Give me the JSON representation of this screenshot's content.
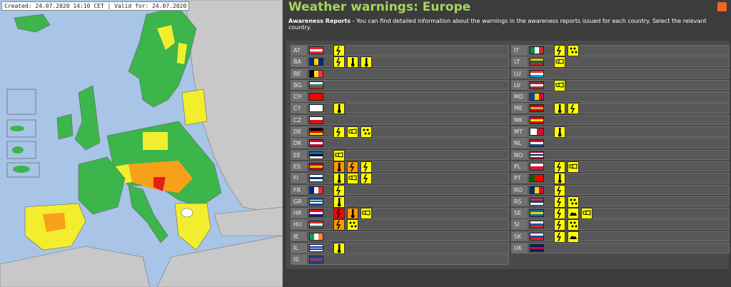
{
  "map": {
    "caption": "Created: 24.07.2020 14:10 CET | Valid for: 24.07.2020"
  },
  "header": {
    "title": "Weather warnings: Europe",
    "intro_bold": "Awareness Reports",
    "intro_text": " - You can find detailed information about the warnings in the awareness reports issued for each country. Select the relevant country."
  },
  "columns": [
    [
      {
        "code": "AT",
        "flag": {
          "dir": "h",
          "colors": [
            "#ed2939",
            "#ffffff",
            "#ed2939"
          ]
        },
        "warnings": [
          {
            "icon": "thunderstorm",
            "color": "#ffff00"
          }
        ]
      },
      {
        "code": "BA",
        "flag": {
          "dir": "v",
          "colors": [
            "#002395",
            "#fecb00",
            "#002395"
          ]
        },
        "warnings": [
          {
            "icon": "thunderstorm",
            "color": "#ffff00"
          },
          {
            "icon": "temperature",
            "color": "#ffff00"
          },
          {
            "icon": "temperature",
            "color": "#ffff00"
          }
        ]
      },
      {
        "code": "BE",
        "flag": {
          "dir": "v",
          "colors": [
            "#000000",
            "#fdda24",
            "#ef3340"
          ]
        },
        "warnings": []
      },
      {
        "code": "BG",
        "flag": {
          "dir": "h",
          "colors": [
            "#ffffff",
            "#00966e",
            "#d62612"
          ]
        },
        "warnings": []
      },
      {
        "code": "CH",
        "flag": {
          "dir": "h",
          "colors": [
            "#ff0000",
            "#ff0000",
            "#ff0000"
          ]
        },
        "warnings": []
      },
      {
        "code": "CY",
        "flag": {
          "dir": "h",
          "colors": [
            "#ffffff",
            "#ffffff",
            "#ffffff"
          ]
        },
        "warnings": [
          {
            "icon": "temperature",
            "color": "#ffff00"
          }
        ]
      },
      {
        "code": "CZ",
        "flag": {
          "dir": "h",
          "colors": [
            "#ffffff",
            "#d7141a"
          ]
        },
        "warnings": []
      },
      {
        "code": "DE",
        "flag": {
          "dir": "h",
          "colors": [
            "#000000",
            "#dd0000",
            "#ffce00"
          ]
        },
        "warnings": [
          {
            "icon": "thunderstorm",
            "color": "#ffff00"
          },
          {
            "icon": "wind",
            "color": "#ffff00"
          },
          {
            "icon": "rain",
            "color": "#ffff00"
          }
        ]
      },
      {
        "code": "DK",
        "flag": {
          "dir": "h",
          "colors": [
            "#c60c30",
            "#ffffff",
            "#c60c30"
          ]
        },
        "warnings": []
      },
      {
        "code": "EE",
        "flag": {
          "dir": "h",
          "colors": [
            "#0072ce",
            "#000000",
            "#ffffff"
          ]
        },
        "warnings": [
          {
            "icon": "wind",
            "color": "#ffff00"
          }
        ]
      },
      {
        "code": "ES",
        "flag": {
          "dir": "h",
          "colors": [
            "#aa151b",
            "#f1bf00",
            "#aa151b"
          ]
        },
        "warnings": [
          {
            "icon": "temperature",
            "color": "#ff9900"
          },
          {
            "icon": "thunderstorm",
            "color": "#ff9900"
          },
          {
            "icon": "thunderstorm",
            "color": "#ffff00"
          }
        ]
      },
      {
        "code": "FI",
        "flag": {
          "dir": "h",
          "colors": [
            "#ffffff",
            "#003580",
            "#ffffff"
          ]
        },
        "warnings": [
          {
            "icon": "temperature",
            "color": "#ffff00"
          },
          {
            "icon": "wind",
            "color": "#ffff00"
          },
          {
            "icon": "thunderstorm",
            "color": "#ffff00"
          }
        ]
      },
      {
        "code": "FR",
        "flag": {
          "dir": "v",
          "colors": [
            "#002395",
            "#ffffff",
            "#ed2939"
          ]
        },
        "warnings": [
          {
            "icon": "thunderstorm",
            "color": "#ffff00"
          }
        ]
      },
      {
        "code": "GR",
        "flag": {
          "dir": "h",
          "colors": [
            "#0d5eaf",
            "#ffffff",
            "#0d5eaf",
            "#ffffff",
            "#0d5eaf"
          ]
        },
        "warnings": [
          {
            "icon": "temperature",
            "color": "#ffff00"
          }
        ]
      },
      {
        "code": "HR",
        "flag": {
          "dir": "h",
          "colors": [
            "#ff0000",
            "#ffffff",
            "#171796"
          ]
        },
        "warnings": [
          {
            "icon": "thunderstorm",
            "color": "#ff0000"
          },
          {
            "icon": "temperature",
            "color": "#ff9900"
          },
          {
            "icon": "wind",
            "color": "#ffff00"
          }
        ]
      },
      {
        "code": "HU",
        "flag": {
          "dir": "h",
          "colors": [
            "#ce2939",
            "#ffffff",
            "#477050"
          ]
        },
        "warnings": [
          {
            "icon": "thunderstorm",
            "color": "#ff9900"
          },
          {
            "icon": "rain",
            "color": "#ffff00"
          }
        ]
      },
      {
        "code": "IE",
        "flag": {
          "dir": "v",
          "colors": [
            "#169b62",
            "#ffffff",
            "#ff883e"
          ]
        },
        "warnings": []
      },
      {
        "code": "IL",
        "flag": {
          "dir": "h",
          "colors": [
            "#ffffff",
            "#0038b8",
            "#ffffff",
            "#0038b8",
            "#ffffff"
          ]
        },
        "warnings": [
          {
            "icon": "temperature",
            "color": "#ffff00"
          }
        ]
      },
      {
        "code": "IS",
        "flag": {
          "dir": "h",
          "colors": [
            "#02529c",
            "#dc1e35",
            "#02529c"
          ]
        },
        "warnings": []
      }
    ],
    [
      {
        "code": "IT",
        "flag": {
          "dir": "v",
          "colors": [
            "#009246",
            "#ffffff",
            "#ce2b37"
          ]
        },
        "warnings": [
          {
            "icon": "thunderstorm",
            "color": "#ffff00"
          },
          {
            "icon": "rain",
            "color": "#ffff00"
          }
        ]
      },
      {
        "code": "LT",
        "flag": {
          "dir": "h",
          "colors": [
            "#fdb913",
            "#006a44",
            "#c1272d"
          ]
        },
        "warnings": [
          {
            "icon": "wind",
            "color": "#ffff00"
          }
        ]
      },
      {
        "code": "LU",
        "flag": {
          "dir": "h",
          "colors": [
            "#ed2939",
            "#ffffff",
            "#00a1de"
          ]
        },
        "warnings": []
      },
      {
        "code": "LV",
        "flag": {
          "dir": "h",
          "colors": [
            "#9e3039",
            "#ffffff",
            "#9e3039"
          ]
        },
        "warnings": [
          {
            "icon": "wind",
            "color": "#ffff00"
          }
        ]
      },
      {
        "code": "MD",
        "flag": {
          "dir": "v",
          "colors": [
            "#0046ae",
            "#ffd200",
            "#cc092f"
          ]
        },
        "warnings": []
      },
      {
        "code": "ME",
        "flag": {
          "dir": "h",
          "colors": [
            "#c40308",
            "#d3ae3b",
            "#c40308"
          ]
        },
        "warnings": [
          {
            "icon": "temperature",
            "color": "#ffff00"
          },
          {
            "icon": "thunderstorm",
            "color": "#ffff00"
          }
        ]
      },
      {
        "code": "MK",
        "flag": {
          "dir": "h",
          "colors": [
            "#d20000",
            "#ffe600",
            "#d20000"
          ]
        },
        "warnings": []
      },
      {
        "code": "MT",
        "flag": {
          "dir": "v",
          "colors": [
            "#ffffff",
            "#cf142b"
          ]
        },
        "warnings": [
          {
            "icon": "temperature",
            "color": "#ffff00"
          }
        ]
      },
      {
        "code": "NL",
        "flag": {
          "dir": "h",
          "colors": [
            "#ae1c28",
            "#ffffff",
            "#21468b"
          ]
        },
        "warnings": []
      },
      {
        "code": "NO",
        "flag": {
          "dir": "h",
          "colors": [
            "#ba0c2f",
            "#ffffff",
            "#00205b",
            "#ffffff",
            "#ba0c2f"
          ]
        },
        "warnings": []
      },
      {
        "code": "PL",
        "flag": {
          "dir": "h",
          "colors": [
            "#ffffff",
            "#dc143c"
          ]
        },
        "warnings": [
          {
            "icon": "thunderstorm",
            "color": "#ffff00"
          },
          {
            "icon": "wind",
            "color": "#ffff00"
          }
        ]
      },
      {
        "code": "PT",
        "flag": {
          "dir": "v",
          "colors": [
            "#006600",
            "#ff0000",
            "#ff0000"
          ]
        },
        "warnings": [
          {
            "icon": "temperature",
            "color": "#ffff00"
          }
        ]
      },
      {
        "code": "RO",
        "flag": {
          "dir": "v",
          "colors": [
            "#002b7f",
            "#fcd116",
            "#ce1126"
          ]
        },
        "warnings": [
          {
            "icon": "thunderstorm",
            "color": "#ffff00"
          }
        ]
      },
      {
        "code": "RS",
        "flag": {
          "dir": "h",
          "colors": [
            "#c6363c",
            "#0c4076",
            "#ffffff"
          ]
        },
        "warnings": [
          {
            "icon": "thunderstorm",
            "color": "#ffff00"
          },
          {
            "icon": "rain",
            "color": "#ffff00"
          }
        ]
      },
      {
        "code": "SE",
        "flag": {
          "dir": "h",
          "colors": [
            "#006aa7",
            "#fecc00",
            "#006aa7"
          ]
        },
        "warnings": [
          {
            "icon": "thunderstorm",
            "color": "#ffff00"
          },
          {
            "icon": "coastal",
            "color": "#ffff00"
          },
          {
            "icon": "wind",
            "color": "#ffff00"
          }
        ]
      },
      {
        "code": "SI",
        "flag": {
          "dir": "h",
          "colors": [
            "#ffffff",
            "#005da4",
            "#ed1c24"
          ]
        },
        "warnings": [
          {
            "icon": "thunderstorm",
            "color": "#ffff00"
          },
          {
            "icon": "rain",
            "color": "#ffff00"
          }
        ]
      },
      {
        "code": "SK",
        "flag": {
          "dir": "h",
          "colors": [
            "#ffffff",
            "#0b4ea2",
            "#ee1c25"
          ]
        },
        "warnings": [
          {
            "icon": "thunderstorm",
            "color": "#ffff00"
          },
          {
            "icon": "coastal",
            "color": "#ffff00"
          }
        ]
      },
      {
        "code": "UK",
        "flag": {
          "dir": "h",
          "colors": [
            "#012169",
            "#c8102e",
            "#012169"
          ]
        },
        "warnings": []
      }
    ]
  ]
}
